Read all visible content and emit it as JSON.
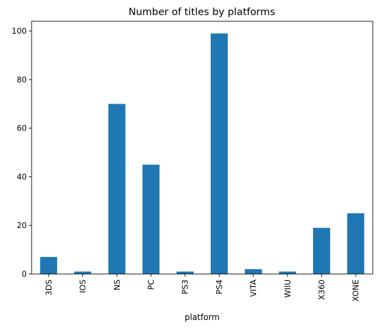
{
  "chart_data": {
    "type": "bar",
    "title": "Number of titles by platforms",
    "xlabel": "platform",
    "ylabel": "",
    "categories": [
      "3DS",
      "IOS",
      "NS",
      "PC",
      "PS3",
      "PS4",
      "VITA",
      "WIIU",
      "X360",
      "XONE"
    ],
    "values": [
      7,
      1,
      70,
      45,
      1,
      99,
      2,
      1,
      19,
      25
    ],
    "ylim": [
      0,
      104
    ],
    "yticks": [
      0,
      20,
      40,
      60,
      80,
      100
    ],
    "bar_color": "#1f77b4",
    "grid": false,
    "legend": "none"
  }
}
